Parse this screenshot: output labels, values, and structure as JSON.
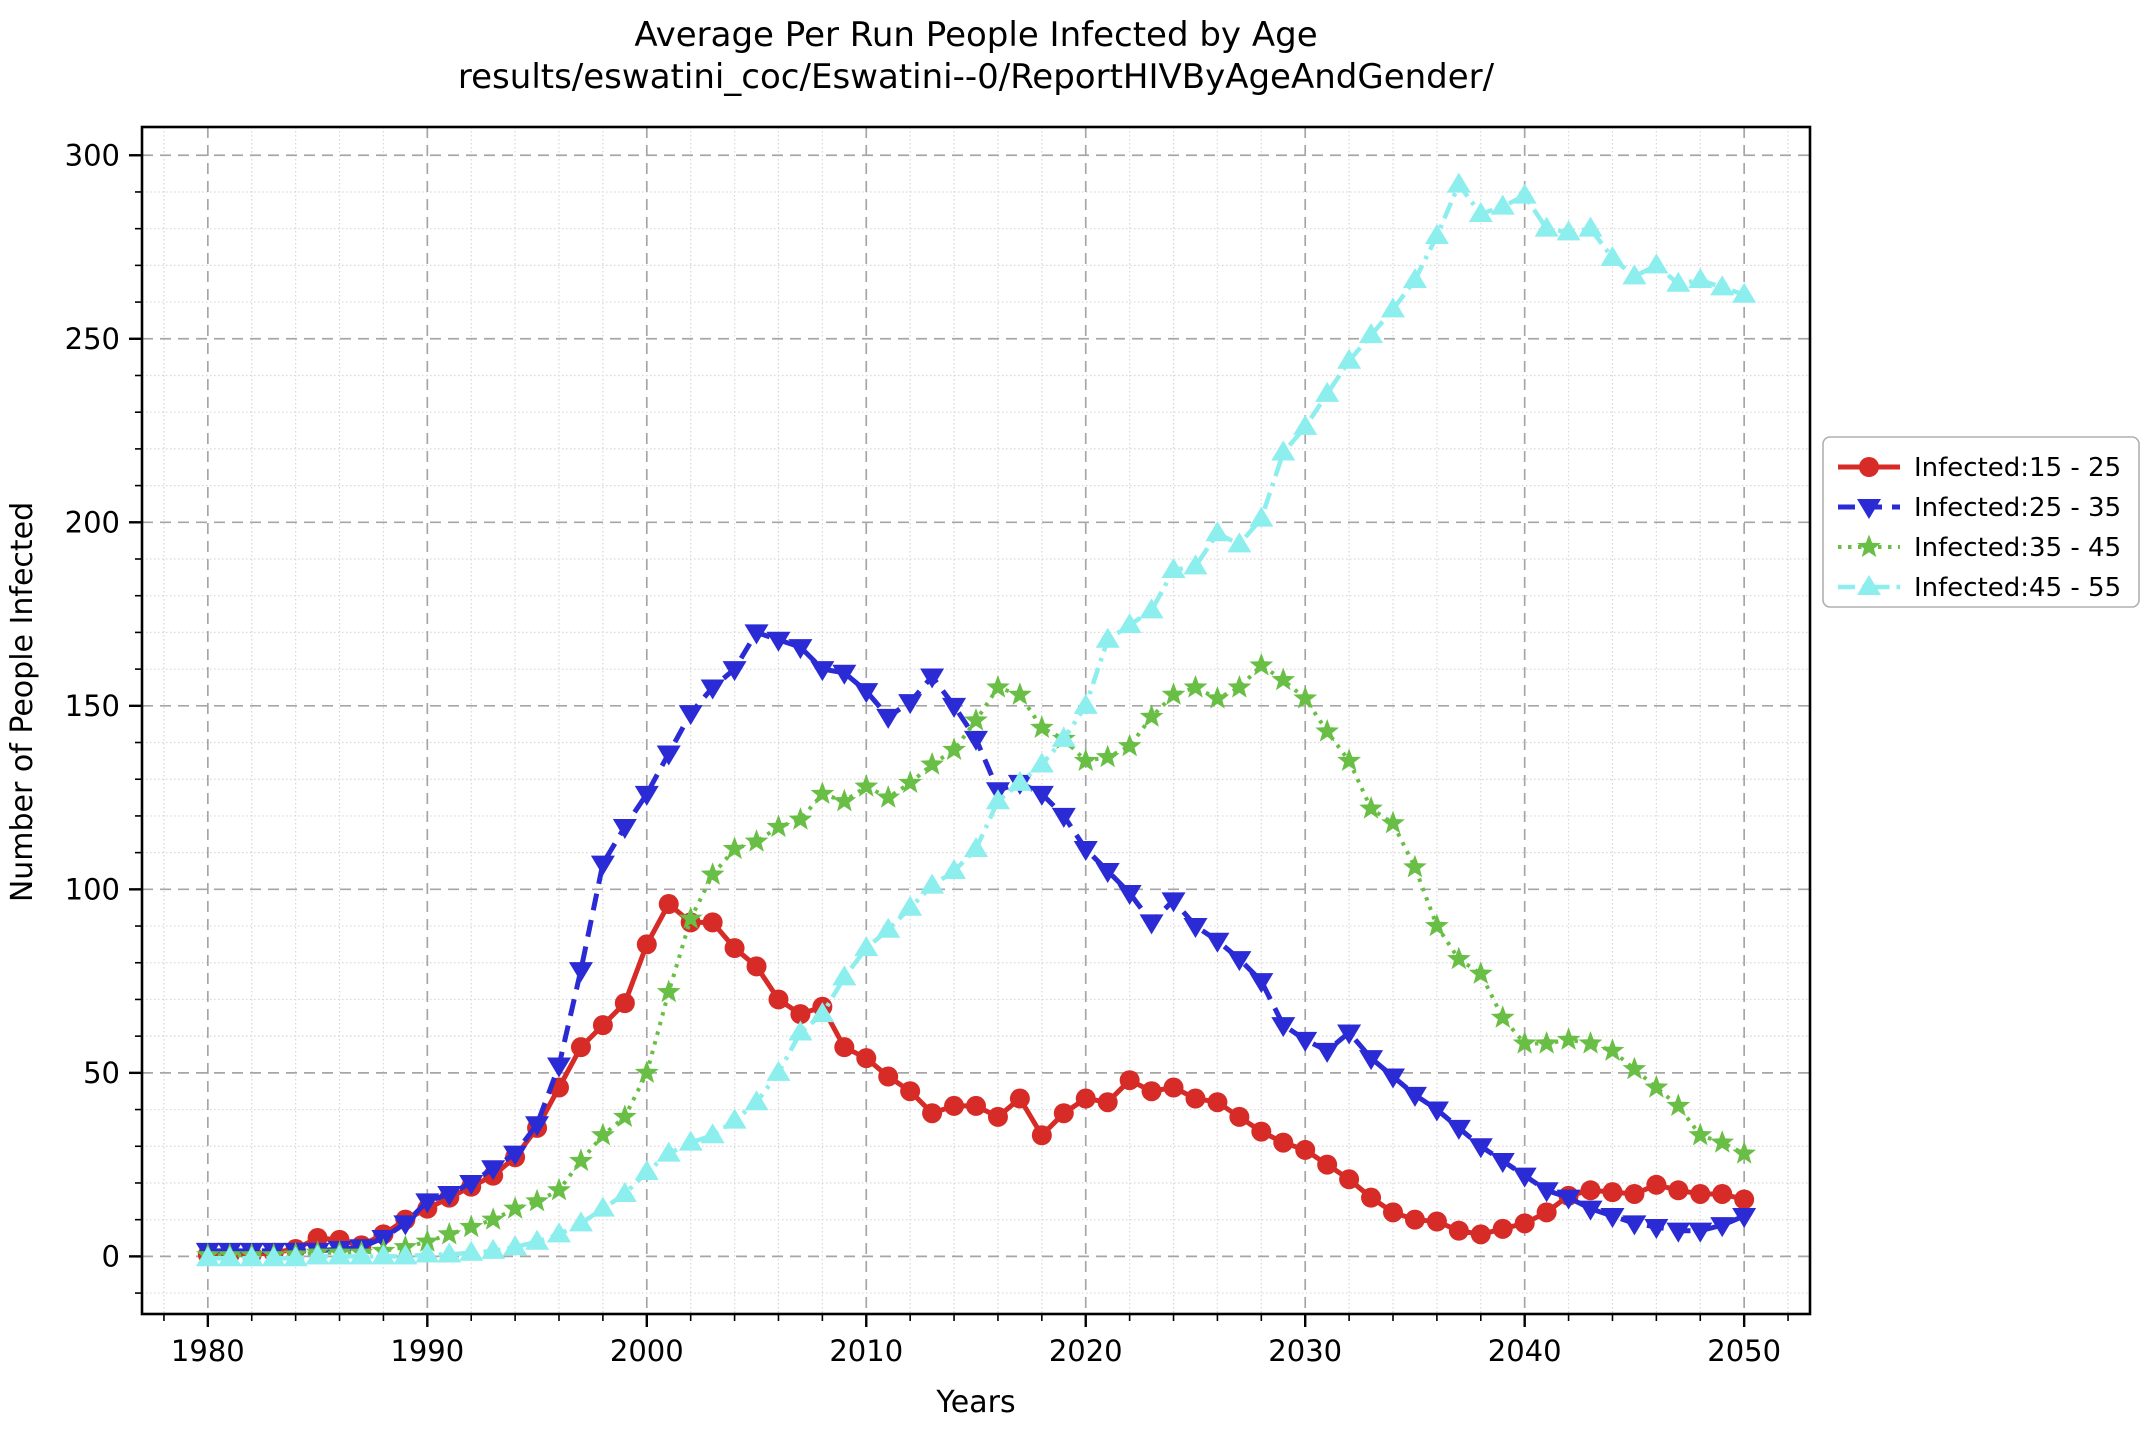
{
  "chart_data": {
    "type": "line",
    "title": "Average Per Run People Infected by Age",
    "subtitle": "results/eswatini_coc/Eswatini--0/ReportHIVByAgeAndGender/",
    "xlabel": "Years",
    "ylabel": "Number of People Infected",
    "xlim": [
      1977,
      2053
    ],
    "ylim": [
      -15.7,
      307.7
    ],
    "x_major_ticks": [
      1980,
      1990,
      2000,
      2010,
      2020,
      2030,
      2040,
      2050
    ],
    "x_minor_step": 2,
    "y_major_ticks": [
      0,
      50,
      100,
      150,
      200,
      250,
      300
    ],
    "y_minor_step": 10,
    "grid": true,
    "legend_position": "center right outside",
    "x": [
      1980,
      1981,
      1982,
      1983,
      1984,
      1985,
      1986,
      1987,
      1988,
      1989,
      1990,
      1991,
      1992,
      1993,
      1994,
      1995,
      1996,
      1997,
      1998,
      1999,
      2000,
      2001,
      2002,
      2003,
      2004,
      2005,
      2006,
      2007,
      2008,
      2009,
      2010,
      2011,
      2012,
      2013,
      2014,
      2015,
      2016,
      2017,
      2018,
      2019,
      2020,
      2021,
      2022,
      2023,
      2024,
      2025,
      2026,
      2027,
      2028,
      2029,
      2030,
      2031,
      2032,
      2033,
      2034,
      2035,
      2036,
      2037,
      2038,
      2039,
      2040,
      2041,
      2042,
      2043,
      2044,
      2045,
      2046,
      2047,
      2048,
      2049,
      2050
    ],
    "series": [
      {
        "name": "Infected:15 - 25",
        "color": "#d62b27",
        "line_style": "solid",
        "line_width": 5,
        "marker": "circle",
        "values": [
          0.5,
          0.5,
          0.5,
          1,
          2,
          5,
          4.5,
          3,
          6,
          10,
          13,
          16,
          19,
          22,
          27,
          35,
          46,
          57,
          63,
          69,
          85,
          96,
          91,
          91,
          84,
          79,
          70,
          66,
          68,
          57,
          54,
          49,
          45,
          39,
          41,
          41,
          38,
          43,
          33,
          39,
          43,
          42,
          48,
          45,
          46,
          43,
          42,
          38,
          34,
          31,
          29,
          25,
          21,
          16,
          12,
          10,
          9.5,
          7,
          6,
          7.5,
          9,
          12,
          16.5,
          18,
          17.5,
          17,
          19.5,
          18,
          17,
          17,
          15.5
        ]
      },
      {
        "name": "Infected:25 - 35",
        "color": "#2b2bd5",
        "line_style": "dashed",
        "line_width": 5,
        "marker": "triangle-down",
        "values": [
          1.5,
          1.5,
          1.5,
          1.5,
          1.5,
          1.5,
          2,
          2.5,
          5,
          9,
          15,
          17,
          20,
          24,
          28,
          36,
          52,
          78,
          107,
          117,
          126,
          137,
          148,
          155,
          160,
          170,
          168,
          166,
          160,
          159,
          154,
          147,
          151,
          158,
          150,
          141,
          127,
          129,
          126,
          120,
          111,
          105,
          99,
          91,
          97,
          90,
          86,
          81,
          75,
          63,
          59,
          56,
          61,
          54,
          49,
          44,
          40,
          35,
          30,
          26,
          22,
          18,
          16,
          13,
          11,
          9,
          8,
          7,
          7,
          8.5,
          11
        ]
      },
      {
        "name": "Infected:35 - 45",
        "color": "#69bf45",
        "line_style": "dotted",
        "line_width": 4,
        "marker": "star",
        "values": [
          0.3,
          0.3,
          0.3,
          0.3,
          0.5,
          1,
          1,
          1,
          1.5,
          2.5,
          4,
          6,
          8,
          10,
          13,
          15,
          18,
          26,
          33,
          38,
          50,
          72,
          92,
          104,
          111,
          113,
          117,
          119,
          126,
          124,
          128,
          125,
          129,
          134,
          138,
          146,
          155,
          153,
          144,
          141,
          135,
          136,
          139,
          147,
          153,
          155,
          152,
          155,
          161,
          157,
          152,
          143,
          135,
          122,
          118,
          106,
          90,
          81,
          77,
          65,
          58,
          58,
          59,
          58,
          56,
          51,
          46,
          41,
          33,
          31,
          28
        ]
      },
      {
        "name": "Infected:45 - 55",
        "color": "#8deeee",
        "line_style": "dashdot",
        "line_width": 4.5,
        "marker": "triangle-up",
        "values": [
          -0.5,
          -0.5,
          -0.5,
          -0.5,
          -0.5,
          0,
          0,
          0,
          0,
          0,
          0.5,
          0.5,
          1,
          1.5,
          2.5,
          4,
          6,
          9,
          13,
          17,
          23,
          28,
          31,
          33,
          37,
          42,
          50,
          61,
          66,
          76,
          84,
          89,
          95,
          101,
          105,
          111,
          124,
          129,
          134,
          141,
          150,
          168,
          172,
          176,
          187,
          188,
          197,
          194,
          201,
          219,
          226,
          235,
          244,
          251,
          258,
          266,
          278,
          292,
          284,
          286,
          289,
          280,
          279,
          280,
          272,
          267,
          270,
          265,
          266,
          264,
          262
        ]
      }
    ]
  }
}
